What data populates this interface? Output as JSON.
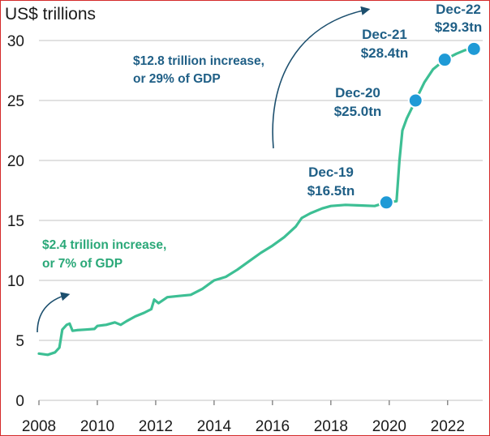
{
  "chart_data": {
    "type": "line",
    "ylabel": "US$ trillions",
    "xlim": [
      2008,
      2023.2
    ],
    "ylim": [
      0,
      30
    ],
    "grid": true,
    "x_ticks": [
      "2008",
      "2010",
      "2012",
      "2014",
      "2016",
      "2018",
      "2020",
      "2022"
    ],
    "y_ticks": [
      "0",
      "5",
      "10",
      "15",
      "20",
      "25",
      "30"
    ],
    "colors": {
      "line": "#3dbf94",
      "marker": "#1f9ad6",
      "callout_text": "#1f5f86",
      "annotation_green": "#2aa878",
      "arrow": "#1c4f6e",
      "grid": "#cfcfcf",
      "frame": "#d42a2a"
    },
    "series": [
      {
        "values": [
          [
            2008.0,
            3.9
          ],
          [
            2008.3,
            3.8
          ],
          [
            2008.55,
            4.0
          ],
          [
            2008.7,
            4.4
          ],
          [
            2008.8,
            5.9
          ],
          [
            2008.95,
            6.3
          ],
          [
            2009.05,
            6.4
          ],
          [
            2009.15,
            5.8
          ],
          [
            2009.3,
            5.85
          ],
          [
            2009.6,
            5.9
          ],
          [
            2009.9,
            5.95
          ],
          [
            2010.0,
            6.2
          ],
          [
            2010.3,
            6.3
          ],
          [
            2010.6,
            6.5
          ],
          [
            2010.8,
            6.3
          ],
          [
            2011.0,
            6.6
          ],
          [
            2011.3,
            7.0
          ],
          [
            2011.6,
            7.3
          ],
          [
            2011.85,
            7.6
          ],
          [
            2011.95,
            8.4
          ],
          [
            2012.1,
            8.1
          ],
          [
            2012.4,
            8.6
          ],
          [
            2012.8,
            8.7
          ],
          [
            2013.2,
            8.8
          ],
          [
            2013.6,
            9.3
          ],
          [
            2014.0,
            10.0
          ],
          [
            2014.4,
            10.3
          ],
          [
            2014.8,
            10.9
          ],
          [
            2015.2,
            11.6
          ],
          [
            2015.6,
            12.3
          ],
          [
            2016.0,
            12.9
          ],
          [
            2016.4,
            13.6
          ],
          [
            2016.8,
            14.5
          ],
          [
            2017.0,
            15.2
          ],
          [
            2017.3,
            15.6
          ],
          [
            2017.7,
            16.0
          ],
          [
            2018.0,
            16.2
          ],
          [
            2018.5,
            16.3
          ],
          [
            2019.0,
            16.25
          ],
          [
            2019.5,
            16.2
          ],
          [
            2019.9,
            16.5
          ],
          [
            2020.25,
            16.6
          ],
          [
            2020.35,
            20.0
          ],
          [
            2020.45,
            22.5
          ],
          [
            2020.6,
            23.5
          ],
          [
            2020.9,
            25.0
          ],
          [
            2021.2,
            26.5
          ],
          [
            2021.5,
            27.6
          ],
          [
            2021.9,
            28.4
          ],
          [
            2022.3,
            28.9
          ],
          [
            2022.6,
            29.2
          ],
          [
            2022.9,
            29.3
          ]
        ]
      }
    ],
    "markers": [
      {
        "x": 2019.9,
        "y": 16.5
      },
      {
        "x": 2020.9,
        "y": 25.0
      },
      {
        "x": 2021.9,
        "y": 28.4
      },
      {
        "x": 2022.9,
        "y": 29.3
      }
    ],
    "callouts": [
      {
        "line1": "Dec-19",
        "line2": "$16.5tn"
      },
      {
        "line1": "Dec-20",
        "line2": "$25.0tn"
      },
      {
        "line1": "Dec-21",
        "line2": "$28.4tn"
      },
      {
        "line1": "Dec-22",
        "line2": "$29.3tn"
      }
    ],
    "annotations": [
      {
        "line1": "$12.8 trillion increase,",
        "line2": "or 29% of GDP",
        "color": "#1f5f86"
      },
      {
        "line1": "$2.4 trillion increase,",
        "line2": "or 7% of GDP",
        "color": "#2aa878"
      }
    ]
  }
}
